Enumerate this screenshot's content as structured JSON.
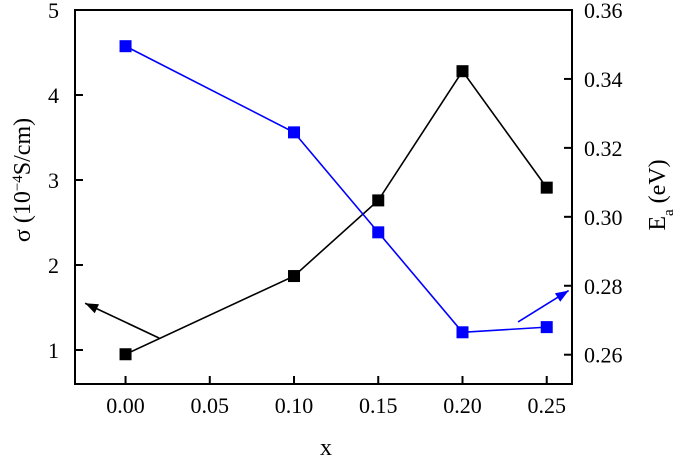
{
  "chart_data": {
    "type": "line",
    "title": "",
    "xlabel": "x",
    "ylabel_left": {
      "main": "σ (10",
      "sup": "−4",
      "rest": "S/cm)"
    },
    "ylabel_right": {
      "main": "E",
      "sub": "a",
      "rest": " (eV)"
    },
    "x": [
      0.0,
      0.1,
      0.15,
      0.2,
      0.25
    ],
    "x_ticks": [
      "0.00",
      "0.05",
      "0.10",
      "0.15",
      "0.20",
      "0.25"
    ],
    "x_tick_values": [
      0.0,
      0.05,
      0.1,
      0.15,
      0.2,
      0.25
    ],
    "xlim": [
      -0.03,
      0.265
    ],
    "y_left_ticks": [
      "1",
      "2",
      "3",
      "4",
      "5"
    ],
    "y_left_tick_values": [
      1,
      2,
      3,
      4,
      5
    ],
    "ylim_left": [
      0.6,
      5.0
    ],
    "y_right_ticks": [
      "0.26",
      "0.28",
      "0.30",
      "0.32",
      "0.34",
      "0.36"
    ],
    "y_right_tick_values": [
      0.26,
      0.28,
      0.3,
      0.32,
      0.34,
      0.36
    ],
    "ylim_right": [
      0.2515,
      0.36
    ],
    "series": [
      {
        "axis": "left",
        "color": "#000000",
        "marker": "square",
        "values": [
          0.95,
          1.87,
          2.76,
          4.28,
          2.91
        ]
      },
      {
        "axis": "right",
        "color": "#0000ff",
        "marker": "square",
        "values": [
          0.3495,
          0.3245,
          0.2955,
          0.2665,
          0.268
        ]
      }
    ],
    "arrows": [
      {
        "color": "#000000",
        "direction": "up-left",
        "from": [
          0.02,
          1.14
        ],
        "to": [
          -0.024,
          1.55
        ]
      },
      {
        "color": "#0000ff",
        "direction": "up-right",
        "from": [
          0.233,
          0.2695
        ],
        "to": [
          0.263,
          0.2786
        ]
      }
    ],
    "grid": false,
    "legend": "none"
  }
}
